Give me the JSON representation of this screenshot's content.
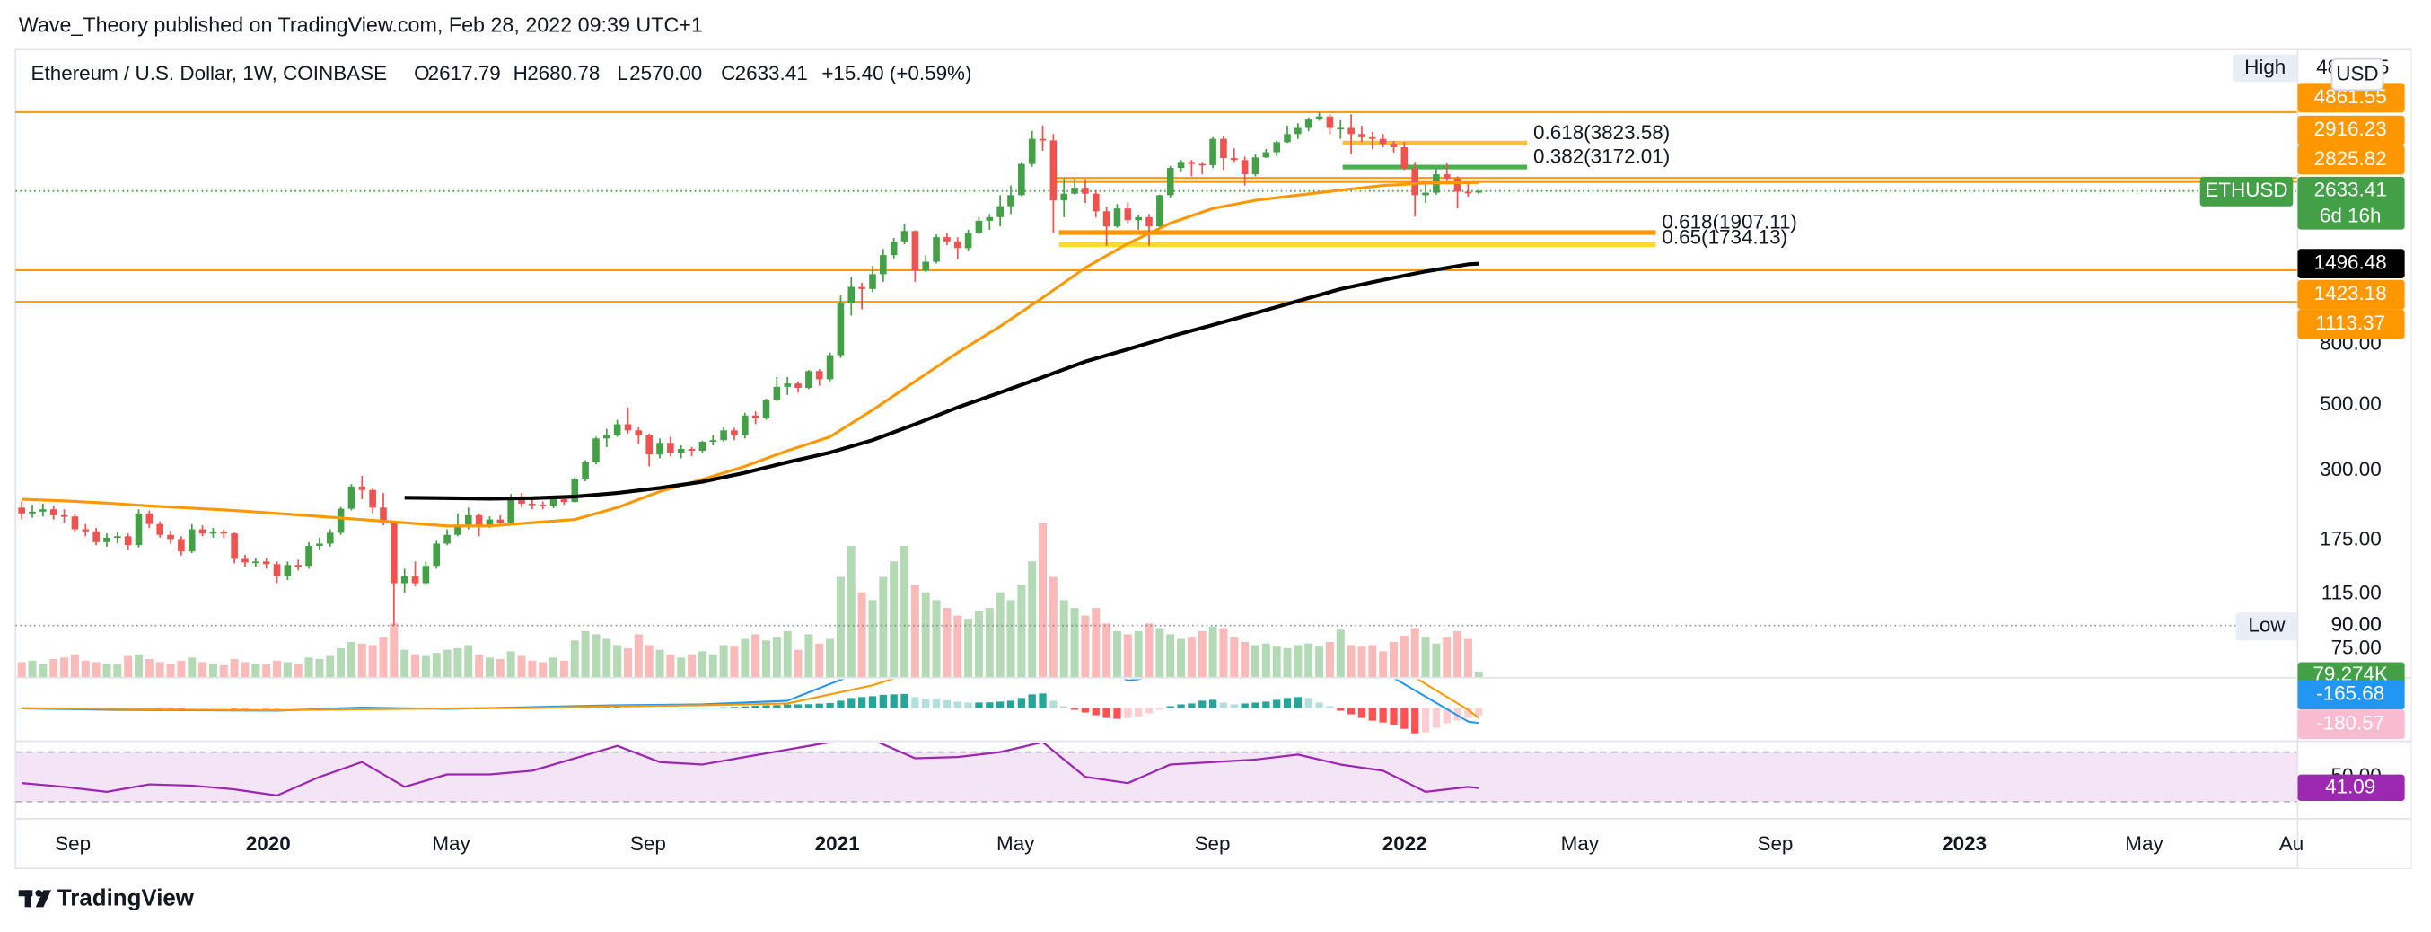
{
  "publisher": "Wave_Theory published on TradingView.com, Feb 28, 2022 09:39 UTC+1",
  "footer": "TradingView",
  "chart_data": {
    "type": "candlestick",
    "title": "Ethereum / U.S. Dollar, 1W, COINBASE",
    "ohlc_labels": [
      "O",
      "H",
      "L",
      "C"
    ],
    "ohlc_values": [
      "2617.79",
      "2680.78",
      "2570.00",
      "2633.41"
    ],
    "change": "+15.40 (+0.59%)",
    "currency": "USD",
    "symbol": "ETHUSD",
    "countdown": "6d 16h",
    "log_scale": true,
    "ylim": [
      60,
      7900
    ],
    "yticks": [
      {
        "value": 800,
        "label": "800.00"
      },
      {
        "value": 500,
        "label": "500.00"
      },
      {
        "value": 300,
        "label": "300.00"
      },
      {
        "value": 175,
        "label": "175.00"
      },
      {
        "value": 115,
        "label": "115.00"
      },
      {
        "value": 90,
        "label": "90.00"
      },
      {
        "value": 75,
        "label": "75.00"
      }
    ],
    "xticks": [
      "Sep",
      "2020",
      "May",
      "Sep",
      "2021",
      "May",
      "Sep",
      "2022",
      "May",
      "Sep",
      "2023",
      "May",
      "Au"
    ],
    "colors": {
      "up": "#43a047",
      "down": "#ef5350"
    },
    "candles": [
      [
        225,
        236,
        205,
        215
      ],
      [
        215,
        230,
        208,
        218
      ],
      [
        218,
        232,
        210,
        222
      ],
      [
        222,
        228,
        205,
        212
      ],
      [
        212,
        222,
        200,
        210
      ],
      [
        210,
        214,
        186,
        190
      ],
      [
        190,
        198,
        180,
        187
      ],
      [
        187,
        192,
        168,
        172
      ],
      [
        172,
        184,
        166,
        178
      ],
      [
        178,
        186,
        170,
        180
      ],
      [
        180,
        184,
        162,
        168
      ],
      [
        168,
        222,
        165,
        215
      ],
      [
        215,
        220,
        192,
        198
      ],
      [
        198,
        202,
        178,
        182
      ],
      [
        182,
        188,
        170,
        176
      ],
      [
        176,
        180,
        155,
        160
      ],
      [
        160,
        198,
        158,
        190
      ],
      [
        190,
        196,
        180,
        184
      ],
      [
        184,
        192,
        178,
        186
      ],
      [
        186,
        190,
        178,
        184
      ],
      [
        184,
        186,
        146,
        151
      ],
      [
        151,
        156,
        142,
        147
      ],
      [
        147,
        152,
        142,
        148
      ],
      [
        148,
        152,
        140,
        145
      ],
      [
        145,
        148,
        125,
        132
      ],
      [
        132,
        148,
        128,
        144
      ],
      [
        144,
        150,
        138,
        143
      ],
      [
        143,
        172,
        140,
        167
      ],
      [
        167,
        178,
        162,
        170
      ],
      [
        170,
        190,
        166,
        185
      ],
      [
        185,
        226,
        182,
        223
      ],
      [
        223,
        270,
        220,
        265
      ],
      [
        265,
        288,
        240,
        258
      ],
      [
        258,
        262,
        215,
        225
      ],
      [
        225,
        252,
        196,
        200
      ],
      [
        200,
        202,
        90,
        125
      ],
      [
        125,
        140,
        116,
        132
      ],
      [
        132,
        148,
        122,
        125
      ],
      [
        125,
        148,
        124,
        143
      ],
      [
        143,
        175,
        140,
        170
      ],
      [
        170,
        190,
        168,
        182
      ],
      [
        182,
        215,
        180,
        197
      ],
      [
        197,
        225,
        190,
        212
      ],
      [
        212,
        215,
        180,
        195
      ],
      [
        195,
        210,
        192,
        205
      ],
      [
        205,
        212,
        198,
        200
      ],
      [
        200,
        250,
        198,
        245
      ],
      [
        245,
        252,
        225,
        232
      ],
      [
        232,
        240,
        222,
        230
      ],
      [
        230,
        236,
        222,
        228
      ],
      [
        228,
        245,
        224,
        240
      ],
      [
        240,
        244,
        230,
        235
      ],
      [
        235,
        285,
        234,
        280
      ],
      [
        280,
        325,
        276,
        320
      ],
      [
        320,
        390,
        315,
        385
      ],
      [
        385,
        415,
        360,
        395
      ],
      [
        395,
        445,
        390,
        430
      ],
      [
        430,
        490,
        400,
        410
      ],
      [
        410,
        420,
        370,
        395
      ],
      [
        395,
        400,
        310,
        340
      ],
      [
        340,
        385,
        330,
        372
      ],
      [
        372,
        390,
        335,
        345
      ],
      [
        345,
        365,
        330,
        355
      ],
      [
        355,
        360,
        335,
        350
      ],
      [
        350,
        378,
        345,
        375
      ],
      [
        375,
        395,
        365,
        380
      ],
      [
        380,
        420,
        375,
        410
      ],
      [
        410,
        418,
        380,
        395
      ],
      [
        395,
        470,
        385,
        460
      ],
      [
        460,
        475,
        430,
        450
      ],
      [
        450,
        525,
        445,
        520
      ],
      [
        520,
        620,
        515,
        575
      ],
      [
        575,
        620,
        540,
        590
      ],
      [
        590,
        600,
        550,
        570
      ],
      [
        570,
        655,
        565,
        650
      ],
      [
        650,
        660,
        580,
        610
      ],
      [
        610,
        750,
        600,
        735
      ],
      [
        735,
        1170,
        720,
        1100
      ],
      [
        1100,
        1350,
        1000,
        1250
      ],
      [
        1250,
        1290,
        1050,
        1230
      ],
      [
        1230,
        1470,
        1200,
        1380
      ],
      [
        1380,
        1680,
        1300,
        1600
      ],
      [
        1600,
        1830,
        1560,
        1780
      ],
      [
        1780,
        2040,
        1740,
        1930
      ],
      [
        1930,
        1940,
        1300,
        1420
      ],
      [
        1420,
        1600,
        1400,
        1520
      ],
      [
        1520,
        1880,
        1500,
        1840
      ],
      [
        1840,
        1900,
        1730,
        1780
      ],
      [
        1780,
        1840,
        1550,
        1690
      ],
      [
        1690,
        1950,
        1660,
        1900
      ],
      [
        1900,
        2150,
        1880,
        2090
      ],
      [
        2090,
        2200,
        1950,
        2150
      ],
      [
        2150,
        2550,
        2000,
        2340
      ],
      [
        2340,
        2750,
        2200,
        2550
      ],
      [
        2550,
        3300,
        2530,
        3250
      ],
      [
        3250,
        4200,
        3180,
        3950
      ],
      [
        3950,
        4380,
        3600,
        3900
      ],
      [
        3900,
        4100,
        1900,
        2450
      ],
      [
        2450,
        2900,
        2150,
        2580
      ],
      [
        2580,
        2900,
        2560,
        2700
      ],
      [
        2700,
        2890,
        2400,
        2580
      ],
      [
        2580,
        2650,
        2150,
        2250
      ],
      [
        2250,
        2330,
        1720,
        2000
      ],
      [
        2000,
        2380,
        1980,
        2300
      ],
      [
        2300,
        2410,
        2050,
        2100
      ],
      [
        2100,
        2190,
        1950,
        2150
      ],
      [
        2150,
        2200,
        1720,
        2000
      ],
      [
        2000,
        2560,
        1980,
        2550
      ],
      [
        2550,
        3200,
        2500,
        3150
      ],
      [
        3150,
        3350,
        3050,
        3300
      ],
      [
        3300,
        3350,
        2950,
        3250
      ],
      [
        3250,
        3300,
        3000,
        3220
      ],
      [
        3220,
        4000,
        3150,
        3950
      ],
      [
        3950,
        4020,
        3100,
        3400
      ],
      [
        3400,
        3670,
        3300,
        3350
      ],
      [
        3350,
        3440,
        2750,
        3000
      ],
      [
        3000,
        3500,
        2950,
        3420
      ],
      [
        3420,
        3650,
        3400,
        3560
      ],
      [
        3560,
        3900,
        3450,
        3850
      ],
      [
        3850,
        4380,
        3830,
        4100
      ],
      [
        4100,
        4460,
        3950,
        4300
      ],
      [
        4300,
        4665,
        4200,
        4600
      ],
      [
        4600,
        4861.55,
        4550,
        4700
      ],
      [
        4700,
        4780,
        4100,
        4300
      ],
      [
        4300,
        4560,
        3950,
        4300
      ],
      [
        4300,
        4780,
        3500,
        4100
      ],
      [
        4100,
        4370,
        3850,
        4000
      ],
      [
        4000,
        4170,
        3640,
        3950
      ],
      [
        3950,
        4100,
        3700,
        3800
      ],
      [
        3800,
        3880,
        3550,
        3700
      ],
      [
        3700,
        3850,
        3100,
        3150
      ],
      [
        3150,
        3300,
        2160,
        2550
      ],
      [
        2550,
        2820,
        2400,
        2600
      ],
      [
        2600,
        3120,
        2560,
        3000
      ],
      [
        3000,
        3280,
        2850,
        2900
      ],
      [
        2900,
        2950,
        2300,
        2620
      ],
      [
        2620,
        2830,
        2520,
        2618
      ],
      [
        2617.79,
        2680.78,
        2570,
        2633.41
      ]
    ],
    "high": {
      "label": "High",
      "value": 4861.55
    },
    "low": {
      "label": "Low",
      "value": 90,
      "value_label": "90.00"
    },
    "overlay_x": [
      0,
      4,
      8,
      12,
      16,
      20,
      24,
      28,
      32,
      36,
      40,
      44,
      48,
      52,
      56,
      60,
      64,
      68,
      72,
      76,
      80,
      84,
      88,
      92,
      96,
      100,
      104,
      108,
      112,
      116,
      120,
      124,
      128,
      132,
      136,
      137
    ],
    "overlays": [
      {
        "color": "#ff9800",
        "values": [
          240,
          237,
          233,
          228,
          224,
          220,
          215,
          210,
          205,
          200,
          195,
          195,
          200,
          205,
          225,
          255,
          280,
          310,
          350,
          390,
          480,
          600,
          750,
          920,
          1150,
          1450,
          1750,
          2050,
          2300,
          2450,
          2550,
          2650,
          2750,
          2800,
          2810,
          2812
        ]
      },
      {
        "color": "#000000",
        "values": [
          null,
          null,
          null,
          null,
          null,
          null,
          null,
          null,
          null,
          243,
          242,
          241,
          242,
          245,
          252,
          262,
          275,
          295,
          320,
          345,
          380,
          430,
          490,
          550,
          620,
          700,
          770,
          850,
          930,
          1020,
          1120,
          1230,
          1320,
          1410,
          1490,
          1496.48
        ]
      }
    ],
    "levels": [
      {
        "value": 4861.55,
        "color": "#ff9800"
      },
      {
        "value": 2916.23,
        "color": "#ff9800"
      },
      {
        "value": 2825.82,
        "color": "#ff9800"
      },
      {
        "value": 1423.18,
        "color": "#ff9800"
      },
      {
        "value": 1113.37,
        "color": "#ff9800"
      }
    ],
    "fibs": [
      {
        "label": "0.618(3823.58)",
        "value": 3823.58,
        "color": "#fbc02d"
      },
      {
        "label": "0.382(3172.01)",
        "value": 3172.01,
        "color": "#4caf50"
      },
      {
        "label": "0.618(1907.11)",
        "value": 1907.11,
        "color": "#ff9800"
      },
      {
        "label": "0.65(1734.13)",
        "value": 1734.13,
        "color": "#fdd835"
      }
    ],
    "volume": {
      "ylim": [
        0,
        8100
      ],
      "last_label": "79.274K",
      "values": [
        200,
        220,
        180,
        240,
        260,
        300,
        220,
        200,
        180,
        170,
        280,
        300,
        240,
        200,
        180,
        220,
        260,
        200,
        180,
        160,
        240,
        200,
        180,
        170,
        220,
        200,
        180,
        260,
        240,
        280,
        380,
        460,
        440,
        420,
        520,
        700,
        360,
        300,
        280,
        320,
        360,
        380,
        420,
        300,
        260,
        240,
        340,
        280,
        220,
        200,
        260,
        220,
        480,
        600,
        560,
        500,
        420,
        380,
        560,
        420,
        360,
        300,
        260,
        300,
        340,
        300,
        420,
        400,
        500,
        560,
        480,
        520,
        600,
        360,
        560,
        440,
        500,
        1300,
        1700,
        1100,
        1000,
        1300,
        1500,
        1700,
        1200,
        1100,
        1000,
        900,
        800,
        760,
        860,
        900,
        1100,
        1000,
        1200,
        1500,
        2000,
        1300,
        1000,
        900,
        800,
        900,
        700,
        600,
        560,
        600,
        700,
        640,
        560,
        500,
        520,
        600,
        660,
        640,
        520,
        460,
        420,
        440,
        400,
        380,
        420,
        440,
        400,
        460,
        620,
        420,
        400,
        420,
        340,
        460,
        540,
        640,
        520,
        440,
        520,
        600,
        500,
        79.274
      ]
    },
    "macd": {
      "ylim": [
        -367,
        317
      ],
      "hist_colors": [
        "#26a69a",
        "#b2dfdb",
        "#ff5252",
        "#ffcdd2"
      ],
      "hist": [
        0,
        -2,
        -3,
        -5,
        -6,
        -8,
        -9,
        -10,
        -9,
        -8,
        -6,
        -3,
        -2,
        -3,
        -4,
        -5,
        -3,
        -2,
        -2,
        -2,
        -4,
        -5,
        -5,
        -6,
        -7,
        -6,
        -5,
        -3,
        -1,
        2,
        6,
        10,
        12,
        10,
        6,
        -2,
        -6,
        -8,
        -7,
        -4,
        -1,
        2,
        4,
        4,
        3,
        3,
        5,
        5,
        4,
        4,
        5,
        5,
        8,
        12,
        18,
        22,
        24,
        20,
        14,
        8,
        4,
        2,
        3,
        4,
        5,
        5,
        8,
        12,
        18,
        25,
        30,
        32,
        38,
        40,
        42,
        48,
        55,
        80,
        110,
        120,
        130,
        145,
        150,
        155,
        120,
        100,
        95,
        85,
        70,
        60,
        60,
        62,
        70,
        80,
        110,
        150,
        160,
        80,
        20,
        -20,
        -50,
        -80,
        -110,
        -120,
        -110,
        -95,
        -60,
        -20,
        20,
        40,
        50,
        80,
        90,
        60,
        40,
        50,
        60,
        70,
        90,
        110,
        120,
        110,
        60,
        20,
        -30,
        -70,
        -110,
        -140,
        -160,
        -190,
        -230,
        -280,
        -270,
        -220,
        -170,
        -140,
        -110,
        -80
      ],
      "x": [
        0,
        8,
        16,
        24,
        32,
        40,
        48,
        56,
        64,
        72,
        80,
        88,
        96,
        104,
        112,
        120,
        128,
        136,
        137
      ],
      "macd": [
        -5,
        -20,
        -25,
        -30,
        5,
        -10,
        10,
        30,
        40,
        80,
        450,
        700,
        900,
        300,
        450,
        700,
        400,
        -150,
        -165.68
      ],
      "signal": [
        -2,
        -10,
        -20,
        -25,
        -15,
        -5,
        0,
        20,
        30,
        50,
        250,
        550,
        750,
        550,
        380,
        550,
        550,
        -20,
        -110
      ],
      "macd_color": "#2196f3",
      "signal_color": "#ff9800",
      "extra_label": {
        "value": -180.57,
        "color": "#f8bbd0"
      }
    },
    "rsi": {
      "ylim": [
        16.25,
        78.75
      ],
      "band": [
        30,
        70
      ],
      "band_color": "#f3e5f5",
      "color": "#9c27b0",
      "yticks": [
        {
          "value": 50,
          "label": "50.00"
        }
      ],
      "x": [
        0,
        4,
        8,
        12,
        16,
        20,
        24,
        28,
        32,
        36,
        40,
        44,
        48,
        52,
        56,
        60,
        64,
        68,
        72,
        76,
        80,
        84,
        88,
        92,
        96,
        100,
        104,
        108,
        112,
        116,
        120,
        124,
        128,
        132,
        136,
        137
      ],
      "values": [
        45,
        42,
        38,
        44,
        43,
        40,
        35,
        50,
        62,
        42,
        52,
        52,
        55,
        65,
        75,
        62,
        60,
        66,
        72,
        78,
        80,
        65,
        66,
        70,
        78,
        50,
        45,
        60,
        62,
        64,
        68,
        60,
        55,
        38,
        42,
        41.09
      ]
    }
  }
}
